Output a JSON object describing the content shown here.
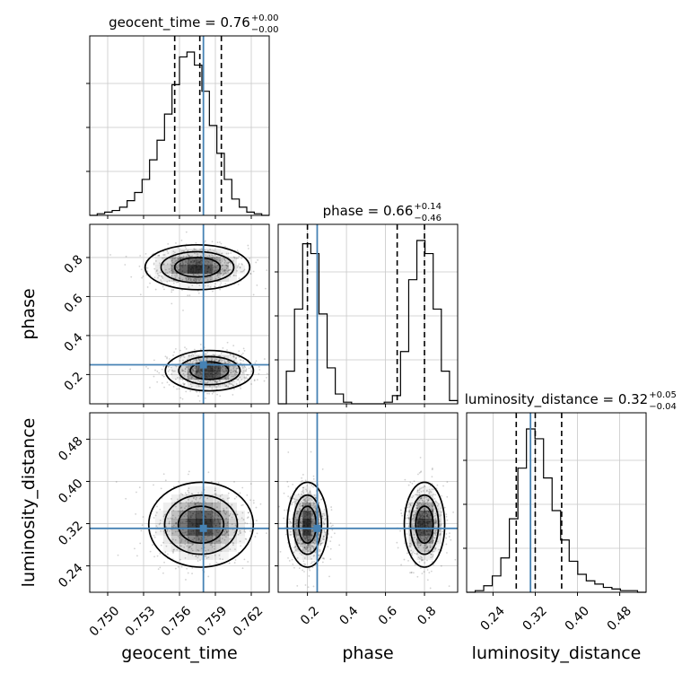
{
  "chart_data": {
    "type": "corner",
    "params": [
      "geocent_time",
      "phase",
      "luminosity_distance"
    ],
    "truths": [
      0.758,
      0.25,
      0.311
    ],
    "titles": [
      {
        "param": "geocent_time",
        "median": "0.76",
        "plus": "+0.00",
        "minus": "−0.00"
      },
      {
        "param": "phase",
        "median": "0.66",
        "plus": "+0.14",
        "minus": "−0.46"
      },
      {
        "param": "luminosity_distance",
        "median": "0.32",
        "plus": "+0.05",
        "minus": "−0.04"
      }
    ],
    "axes": {
      "geocent_time": {
        "range": [
          0.7485,
          0.7635
        ],
        "ticks": [
          "0.750",
          "0.753",
          "0.756",
          "0.759",
          "0.762"
        ],
        "tick_values": [
          0.75,
          0.753,
          0.756,
          0.759,
          0.762
        ]
      },
      "phase": {
        "range": [
          0.05,
          0.97
        ],
        "ticks": [
          "0.2",
          "0.4",
          "0.6",
          "0.8"
        ],
        "tick_values": [
          0.2,
          0.4,
          0.6,
          0.8
        ]
      },
      "luminosity_distance": {
        "range": [
          0.19,
          0.53
        ],
        "ticks": [
          "0.24",
          "0.32",
          "0.40",
          "0.48"
        ],
        "tick_values": [
          0.24,
          0.32,
          0.4,
          0.48
        ]
      }
    },
    "quantiles": {
      "geocent_time": [
        0.7556,
        0.7577,
        0.7595
      ],
      "phase": [
        0.2,
        0.66,
        0.8
      ],
      "luminosity_distance": [
        0.284,
        0.32,
        0.37
      ]
    },
    "histograms": {
      "geocent_time": {
        "edges": [
          0.7485,
          0.7635
        ],
        "counts": [
          0,
          1,
          2,
          3,
          5,
          9,
          14,
          22,
          34,
          46,
          62,
          80,
          97,
          100,
          92,
          76,
          55,
          38,
          22,
          10,
          5,
          2,
          1,
          0
        ]
      },
      "phase": {
        "edges": [
          0.05,
          0.97
        ],
        "counts": [
          0,
          20,
          58,
          98,
          92,
          55,
          22,
          6,
          1,
          0,
          0,
          0,
          0,
          1,
          5,
          32,
          76,
          100,
          92,
          58,
          20,
          2
        ]
      },
      "luminosity_distance": {
        "edges": [
          0.19,
          0.53
        ],
        "counts": [
          0,
          1,
          4,
          10,
          21,
          45,
          76,
          100,
          94,
          70,
          50,
          32,
          19,
          11,
          7,
          5,
          3,
          2,
          1,
          1,
          0
        ]
      }
    },
    "modes_2d": {
      "phase_vs_geocent_time": [
        {
          "x": 0.7575,
          "y": 0.75,
          "sx": 0.0019,
          "sy": 0.05
        },
        {
          "x": 0.7585,
          "y": 0.22,
          "sx": 0.0016,
          "sy": 0.045
        }
      ],
      "luminosity_distance_vs_geocent_time": [
        {
          "x": 0.7578,
          "y": 0.318,
          "sx": 0.0019,
          "sy": 0.035
        }
      ],
      "luminosity_distance_vs_phase": [
        {
          "x": 0.2,
          "y": 0.318,
          "sx": 0.045,
          "sy": 0.035
        },
        {
          "x": 0.8,
          "y": 0.318,
          "sx": 0.045,
          "sy": 0.035
        }
      ]
    },
    "colors": {
      "truth": "#4682b4",
      "hist": "#000000",
      "quantile": "#000000",
      "grid": "#c8c8c8",
      "density": "#000000"
    },
    "grid": true
  }
}
